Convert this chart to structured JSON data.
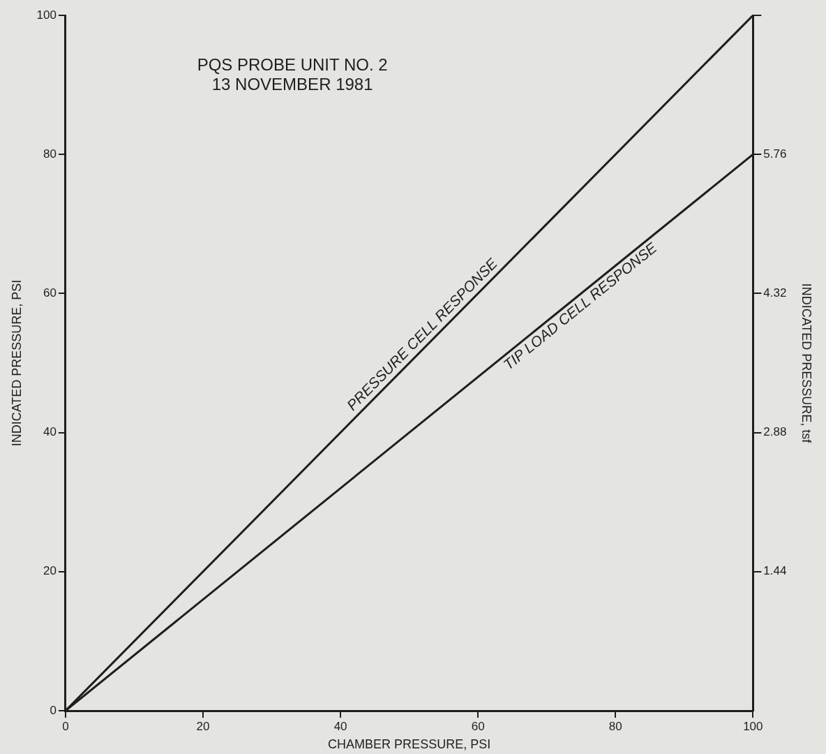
{
  "chart_data": {
    "type": "line",
    "title": "PQS PROBE UNIT NO. 2",
    "subtitle": "13 NOVEMBER 1981",
    "xlabel": "CHAMBER PRESSURE, PSI",
    "ylabel": "INDICATED PRESSURE, PSI",
    "y2label": "INDICATED PRESSURE, tsf",
    "x": [
      0,
      100
    ],
    "series": [
      {
        "name": "PRESSURE CELL RESPONSE",
        "color": "#1e1e1e",
        "values": [
          0,
          100
        ]
      },
      {
        "name": "TIP LOAD CELL RESPONSE",
        "color": "#1e1e1e",
        "values": [
          0,
          80
        ]
      }
    ],
    "xlim": [
      0,
      100
    ],
    "xticks": [
      0,
      20,
      40,
      60,
      80,
      100
    ],
    "ylim": [
      0,
      100
    ],
    "yticks": [
      0,
      20,
      40,
      60,
      80,
      100
    ],
    "y2lim": [
      0,
      7.2
    ],
    "y2ticks": [
      1.44,
      2.88,
      4.32,
      5.76,
      {
        "value": 7.2,
        "label": null
      }
    ],
    "grid": false,
    "legend": false,
    "marker": "none",
    "line_style": "solid"
  }
}
